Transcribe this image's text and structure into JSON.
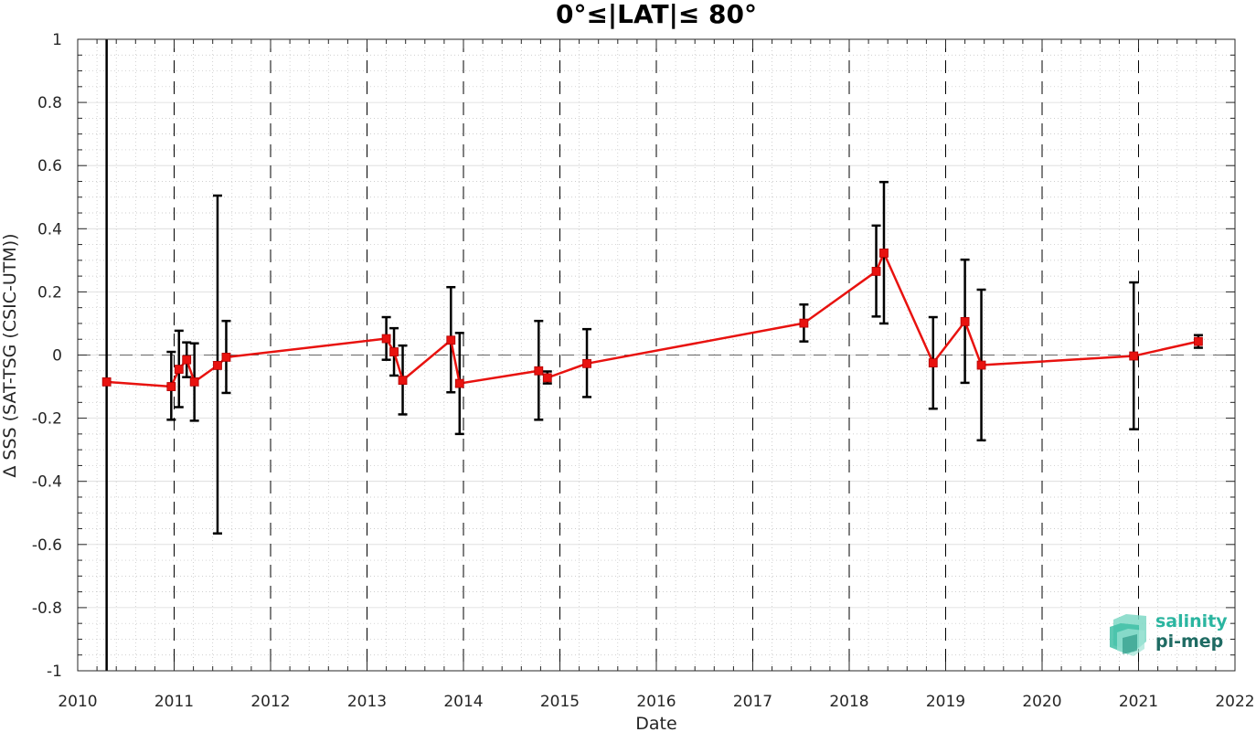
{
  "chart_data": {
    "type": "line",
    "title": "0°≤|LAT|≤ 80°",
    "xlabel": "Date",
    "ylabel": "Δ SSS (SAT-TSG (CSIC-UTM))",
    "xlim": [
      2010,
      2022
    ],
    "ylim": [
      -1,
      1
    ],
    "x_ticks": [
      "2010",
      "2011",
      "2012",
      "2013",
      "2014",
      "2015",
      "2016",
      "2017",
      "2018",
      "2019",
      "2020",
      "2021",
      "2022"
    ],
    "y_ticks": [
      "1",
      "0.8",
      "0.6",
      "0.4",
      "0.2",
      "0",
      "-0.2",
      "-0.4",
      "-0.6",
      "-0.8",
      "-1"
    ],
    "grid": true,
    "year_boundaries": "dashed vertical lines at each year",
    "zero_reference_line": "dashed horizontal line at 0",
    "series": [
      {
        "color": "#e8120f",
        "marker": "square",
        "errorbar_color": "#000000",
        "x": [
          2010.3,
          2010.97,
          2011.05,
          2011.13,
          2011.21,
          2011.45,
          2011.54,
          2013.2,
          2013.28,
          2013.37,
          2013.87,
          2013.96,
          2014.78,
          2014.87,
          2015.28,
          2017.53,
          2018.28,
          2018.36,
          2018.87,
          2019.2,
          2019.37,
          2020.95,
          2021.62
        ],
        "y": [
          -0.085,
          -0.1,
          -0.045,
          -0.015,
          -0.085,
          -0.033,
          -0.007,
          0.052,
          0.01,
          -0.08,
          0.047,
          -0.09,
          -0.05,
          -0.072,
          -0.027,
          0.101,
          0.265,
          0.323,
          -0.025,
          0.106,
          -0.032,
          -0.003,
          0.043
        ],
        "err_low": [
          -1.0,
          -0.205,
          -0.165,
          -0.07,
          -0.208,
          -0.565,
          -0.12,
          -0.015,
          -0.065,
          -0.188,
          -0.118,
          -0.25,
          -0.205,
          -0.09,
          -0.133,
          0.043,
          0.122,
          0.1,
          -0.17,
          -0.088,
          -0.27,
          -0.235,
          0.023
        ],
        "err_high": [
          1.0,
          0.01,
          0.077,
          0.04,
          0.037,
          0.505,
          0.108,
          0.12,
          0.085,
          0.03,
          0.215,
          0.07,
          0.108,
          -0.052,
          0.082,
          0.16,
          0.41,
          0.548,
          0.12,
          0.302,
          0.207,
          0.23,
          0.063
        ]
      }
    ]
  },
  "logo": {
    "line1": "salinity",
    "line2": "pi-mep",
    "color1": "#2bb5a0",
    "color2": "#1f6b63"
  }
}
